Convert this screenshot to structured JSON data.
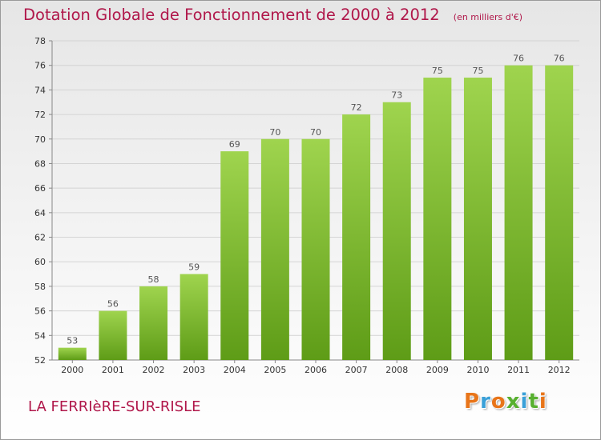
{
  "header": {
    "title": "Dotation Globale de Fonctionnement de 2000 à 2012",
    "unit": "(en milliers d'€)"
  },
  "footer": {
    "commune": "LA FERRIèRE-SUR-RISLE",
    "logo_text": "Proxiti",
    "logo_colors": [
      "#e8751a",
      "#3aa0d8",
      "#e8751a",
      "#58b030",
      "#3aa0d8",
      "#58b030",
      "#e8751a"
    ]
  },
  "chart_data": {
    "type": "bar",
    "title": "Dotation Globale de Fonctionnement de 2000 à 2012",
    "subtitle": "(en milliers d'€)",
    "categories": [
      "2000",
      "2001",
      "2002",
      "2003",
      "2004",
      "2005",
      "2006",
      "2007",
      "2008",
      "2009",
      "2010",
      "2011",
      "2012"
    ],
    "values": [
      53,
      56,
      58,
      59,
      69,
      70,
      70,
      72,
      73,
      75,
      75,
      76,
      76
    ],
    "ylim": [
      52,
      78
    ],
    "yticks": [
      52,
      54,
      56,
      58,
      60,
      62,
      64,
      66,
      68,
      70,
      72,
      74,
      76,
      78
    ],
    "grid": true,
    "bar_color_top": "#9fd44e",
    "bar_color_bottom": "#5e9c17"
  }
}
